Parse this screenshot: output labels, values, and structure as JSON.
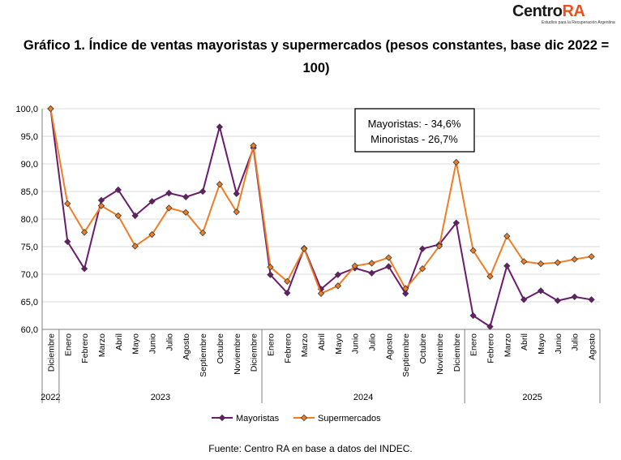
{
  "logo": {
    "brand": "Centro",
    "accent": "RA",
    "tagline": "Estudios para la Recuperación Argentina"
  },
  "title": "Gráfico 1. Índice de ventas mayoristas y supermercados (pesos constantes, base dic 2022 = 100)",
  "source": "Fuente: Centro RA en base a datos del INDEC.",
  "annotation": [
    "Mayoristas: - 34,6%",
    "Minoristas - 26,7%"
  ],
  "colors": {
    "mayoristas": "#6a1b6e",
    "supermercados": "#ef7d23",
    "grid": "#d9d9d9",
    "axis": "#7f7f7f"
  },
  "chart_data": {
    "type": "line",
    "ylim": [
      60,
      100
    ],
    "yticks": [
      "60,0",
      "65,0",
      "70,0",
      "75,0",
      "80,0",
      "85,0",
      "90,0",
      "95,0",
      "100,0"
    ],
    "grid": true,
    "legend_position": "bottom",
    "categories": [
      "Diciembre",
      "Enero",
      "Febrero",
      "Marzo",
      "Abril",
      "Mayo",
      "Junio",
      "Julio",
      "Agosto",
      "Septiembre",
      "Octubre",
      "Noviembre",
      "Diciembre",
      "Enero",
      "Febrero",
      "Marzo",
      "Abril",
      "Mayo",
      "Junio",
      "Julio",
      "Agosto",
      "Septiembre",
      "Octubre",
      "Noviembre",
      "Diciembre",
      "Enero",
      "Febrero",
      "Marzo",
      "Abril",
      "Mayo",
      "Junio",
      "Julio",
      "Agosto"
    ],
    "years": [
      {
        "label": "2022",
        "from": 0,
        "to": 0
      },
      {
        "label": "2023",
        "from": 1,
        "to": 12
      },
      {
        "label": "2024",
        "from": 13,
        "to": 24
      },
      {
        "label": "2025",
        "from": 25,
        "to": 32
      }
    ],
    "series": [
      {
        "name": "Mayoristas",
        "values": [
          100.0,
          75.9,
          71.0,
          83.4,
          85.3,
          80.6,
          83.2,
          84.7,
          84.0,
          85.0,
          96.7,
          84.6,
          92.9,
          69.9,
          66.6,
          74.7,
          67.3,
          69.9,
          71.1,
          70.2,
          71.4,
          66.5,
          74.6,
          75.4,
          79.3,
          62.5,
          60.5,
          71.5,
          65.4,
          67.0,
          65.2,
          65.9,
          65.4
        ]
      },
      {
        "name": "Supermercados",
        "values": [
          100.0,
          82.8,
          77.6,
          82.4,
          80.6,
          75.1,
          77.2,
          82.0,
          81.2,
          77.5,
          86.3,
          81.3,
          93.3,
          71.3,
          68.7,
          74.6,
          66.5,
          67.9,
          71.5,
          72.0,
          73.0,
          67.4,
          71.0,
          75.1,
          90.3,
          74.3,
          69.6,
          76.9,
          72.3,
          71.9,
          72.1,
          72.7,
          73.2
        ]
      }
    ]
  }
}
